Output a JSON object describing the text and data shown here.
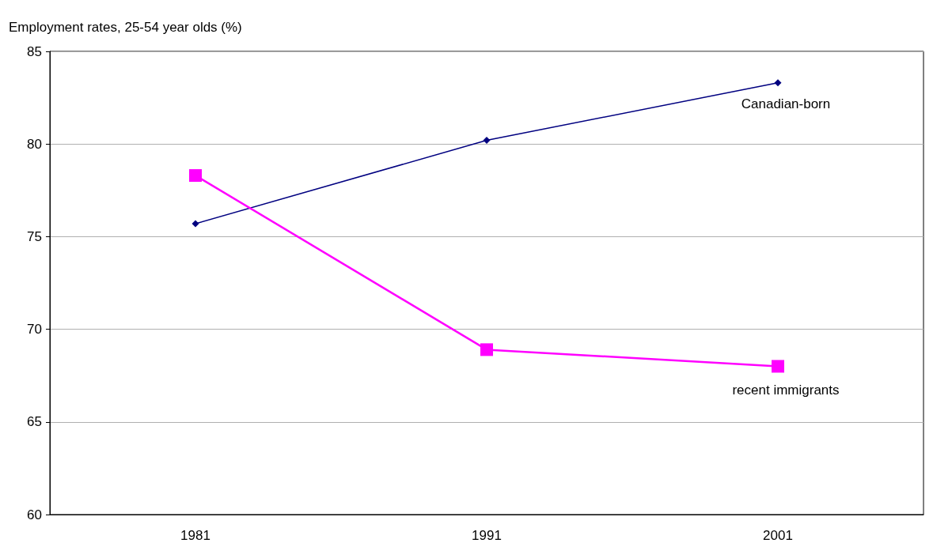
{
  "chart_data": {
    "type": "line",
    "ylabel": "Employment rates, 25-54 year olds (%)",
    "categories": [
      "1981",
      "1991",
      "2001"
    ],
    "series": [
      {
        "name": "Canadian-born",
        "color": "#000080",
        "marker": "diamond",
        "values": [
          75.7,
          80.2,
          83.3
        ]
      },
      {
        "name": "recent immigrants",
        "color": "#ff00ff",
        "marker": "square",
        "values": [
          78.3,
          68.9,
          68.0
        ]
      }
    ],
    "ylim": [
      60,
      85
    ],
    "yticks": [
      60,
      65,
      70,
      75,
      80,
      85
    ],
    "grid": "y",
    "legend": false
  }
}
